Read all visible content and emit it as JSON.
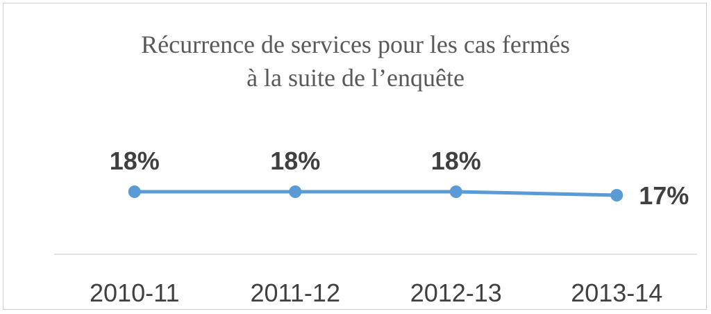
{
  "chart_data": {
    "type": "line",
    "title": "Récurrence de services pour les cas fermés",
    "subtitle": "à la suite de l’enquête",
    "categories": [
      "2010-11",
      "2011-12",
      "2012-13",
      "2013-14"
    ],
    "series": [
      {
        "values": [
          18,
          18,
          18,
          17
        ],
        "labels": [
          "18%",
          "18%",
          "18%",
          "17%"
        ]
      }
    ],
    "ylim": [
      0,
      80
    ],
    "grid": false,
    "legend": "none",
    "colors": {
      "line": "#5b9bd5",
      "axis": "#d9d9d9"
    }
  }
}
